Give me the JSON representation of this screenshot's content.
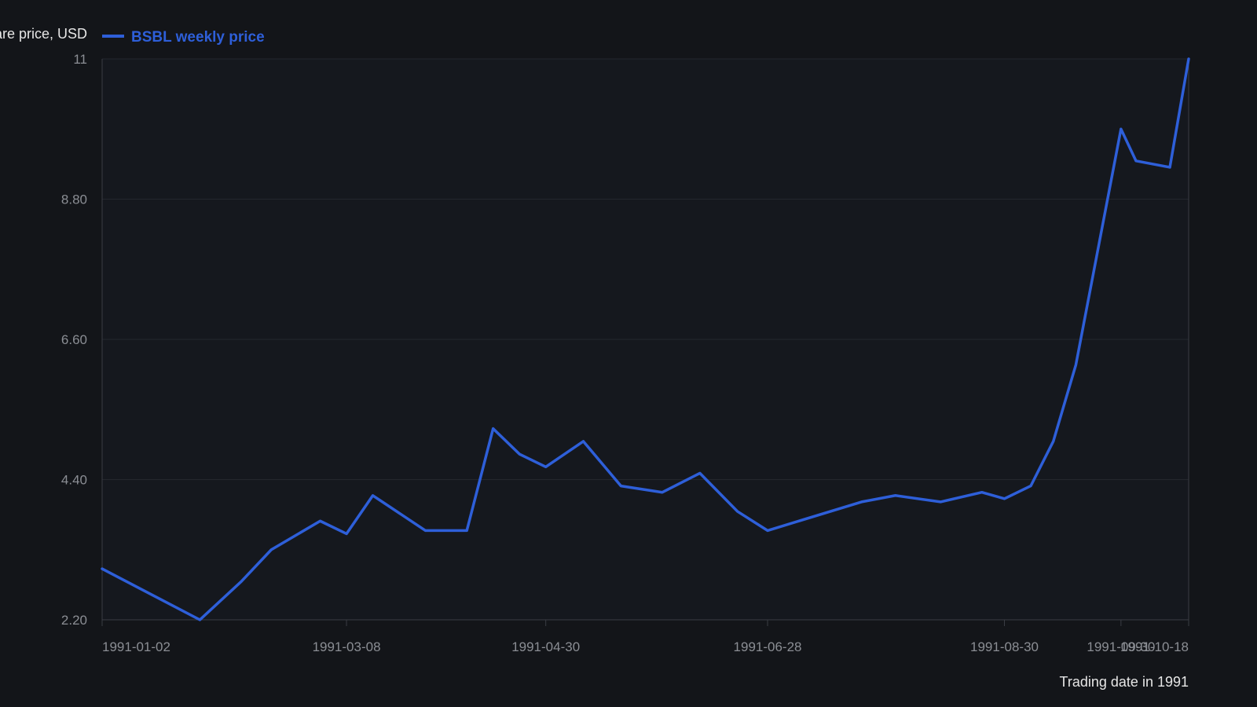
{
  "chart_data": {
    "type": "line",
    "title": "",
    "ylabel": "Share price, USD",
    "xlabel": "Trading date in 1991",
    "ylim": [
      2.2,
      11
    ],
    "yticks": [
      "2.20",
      "4.40",
      "6.60",
      "8.80",
      "11"
    ],
    "yticks_values": [
      2.2,
      4.4,
      6.6,
      8.8,
      11
    ],
    "xticks": [
      "1991-01-02",
      "1991-03-08",
      "1991-04-30",
      "1991-06-28",
      "1991-08-30",
      "1991-09-30",
      "1991-10-18"
    ],
    "xlim": [
      "1991-01-02",
      "1991-10-18"
    ],
    "grid": true,
    "legend_position": "top-left",
    "colors": {
      "background": "#131519",
      "plot_background": "#15181e",
      "line": "#2e5fd9",
      "grid": "#24272e",
      "axis": "#3a3d44"
    },
    "series": [
      {
        "name": "BSBL weekly price",
        "x": [
          "1991-01-02",
          "1991-01-15",
          "1991-01-28",
          "1991-02-08",
          "1991-02-16",
          "1991-03-01",
          "1991-03-08",
          "1991-03-15",
          "1991-03-29",
          "1991-04-09",
          "1991-04-16",
          "1991-04-23",
          "1991-04-30",
          "1991-05-10",
          "1991-05-20",
          "1991-05-31",
          "1991-06-10",
          "1991-06-20",
          "1991-06-28",
          "1991-07-23",
          "1991-08-01",
          "1991-08-13",
          "1991-08-24",
          "1991-08-30",
          "1991-09-06",
          "1991-09-12",
          "1991-09-18",
          "1991-09-30",
          "1991-10-04",
          "1991-10-13",
          "1991-10-18"
        ],
        "y": [
          3.0,
          2.6,
          2.2,
          2.8,
          3.3,
          3.75,
          3.55,
          4.15,
          3.6,
          3.6,
          5.2,
          4.8,
          4.6,
          5.0,
          4.3,
          4.2,
          4.5,
          3.9,
          3.6,
          4.05,
          4.15,
          4.05,
          4.2,
          4.1,
          4.3,
          5.0,
          6.2,
          9.9,
          9.4,
          9.3,
          11.0
        ]
      }
    ]
  }
}
